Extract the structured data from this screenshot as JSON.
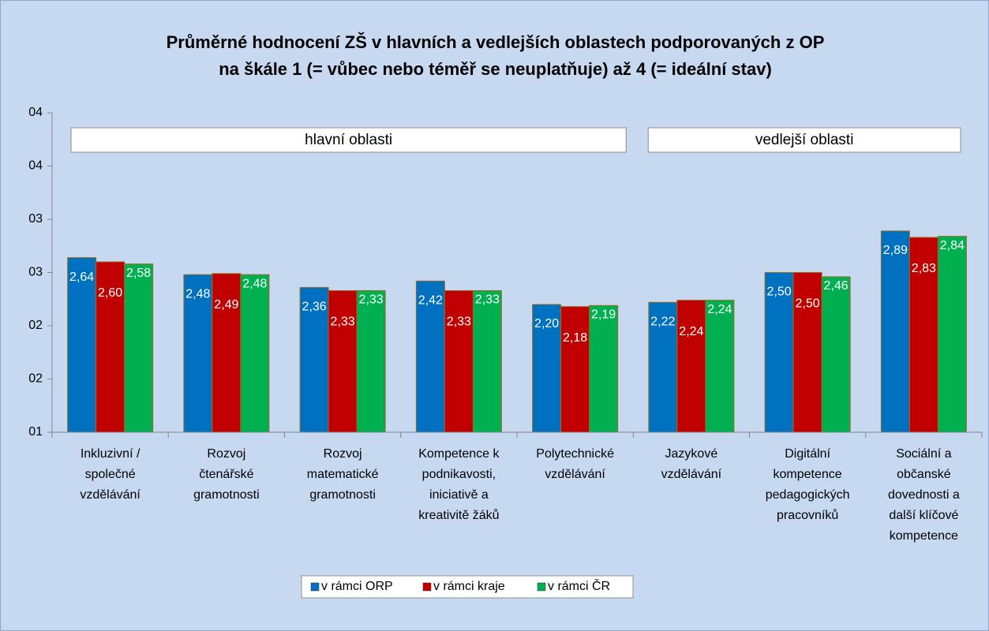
{
  "chart_data": {
    "type": "bar",
    "title": "Průměrné hodnocení ZŠ v hlavních a vedlejších oblastech podporovaných z OP\nna škále 1 (= vůbec nebo téměř se neuplatňuje) až 4 (= ideální stav)",
    "annotations": [
      "hlavní oblasti",
      "vedlejší oblasti"
    ],
    "categories": [
      "Inkluzivní /\nspolečné\nvzdělávání",
      "Rozvoj\nčtenářské\ngramotnosti",
      "Rozvoj\nmatematické\ngramotnosti",
      "Kompetence k\npodnikavosti,\niniciativě a\nkreativitě žáků",
      "Polytechnické\nvzdělávání",
      "Jazykové\nvzdělávání",
      "Digitální\nkompetence\npedagogických\npracovníků",
      "Sociální a\nobčanské\ndovednosti a\ndalší klíčové\nkompetence"
    ],
    "series": [
      {
        "name": "v rámci ORP",
        "color": "#0070c0",
        "values": [
          2.64,
          2.48,
          2.36,
          2.42,
          2.2,
          2.22,
          2.5,
          2.89
        ],
        "value_labels": [
          "2,64",
          "2,48",
          "2,36",
          "2,42",
          "2,20",
          "2,22",
          "2,50",
          "2,89"
        ]
      },
      {
        "name": "v rámci kraje",
        "color": "#c00000",
        "values": [
          2.6,
          2.49,
          2.33,
          2.33,
          2.18,
          2.24,
          2.5,
          2.83
        ],
        "value_labels": [
          "2,60",
          "2,49",
          "2,33",
          "2,33",
          "2,18",
          "2,24",
          "2,50",
          "2,83"
        ]
      },
      {
        "name": "v rámci ČR",
        "color": "#00b050",
        "values": [
          2.58,
          2.48,
          2.33,
          2.33,
          2.19,
          2.24,
          2.46,
          2.84
        ],
        "value_labels": [
          "2,58",
          "2,48",
          "2,33",
          "2,33",
          "2,19",
          "2,24",
          "2,46",
          "2,84"
        ]
      }
    ],
    "ylim": [
      1,
      4
    ],
    "yticks": [
      {
        "value": 1,
        "label": "01"
      },
      {
        "value": 1.5,
        "label": "02"
      },
      {
        "value": 2,
        "label": "02"
      },
      {
        "value": 2.5,
        "label": "03"
      },
      {
        "value": 3,
        "label": "03"
      },
      {
        "value": 3.5,
        "label": "04"
      },
      {
        "value": 4,
        "label": "04"
      }
    ]
  }
}
